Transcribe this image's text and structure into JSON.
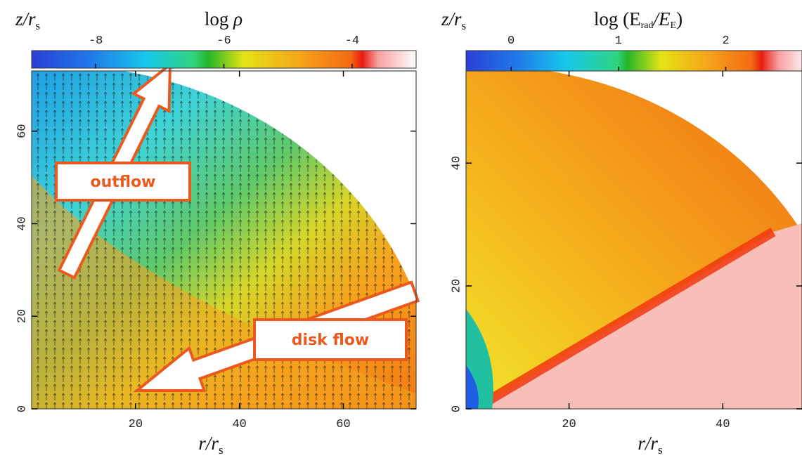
{
  "chart_data": [
    {
      "type": "heatmap",
      "xlabel": [
        "r/r",
        "s"
      ],
      "ylabel": [
        "z/r",
        "s"
      ],
      "xlim": [
        0,
        74
      ],
      "ylim": [
        0,
        73
      ],
      "xticks": [
        20,
        40,
        60
      ],
      "yticks": [
        0,
        20,
        40,
        60
      ],
      "colorbar_label": [
        "log ",
        "ρ"
      ],
      "clim": [
        -9,
        -3
      ],
      "cticks": [
        -8,
        -6,
        -4
      ],
      "annotations": [
        "outflow",
        "disk flow"
      ]
    },
    {
      "type": "heatmap",
      "xlabel": [
        "r/r",
        "s"
      ],
      "ylabel": [
        "z/r",
        "s"
      ],
      "xlim": [
        6.6,
        50.3
      ],
      "ylim": [
        0,
        55
      ],
      "xticks": [
        20,
        40
      ],
      "yticks": [
        0,
        20,
        40
      ],
      "colorbar_label": [
        "log (E",
        "rad",
        "/E",
        "E",
        ")"
      ],
      "clim": [
        -0.42,
        2.71
      ],
      "cticks": [
        0,
        1,
        2
      ]
    }
  ]
}
